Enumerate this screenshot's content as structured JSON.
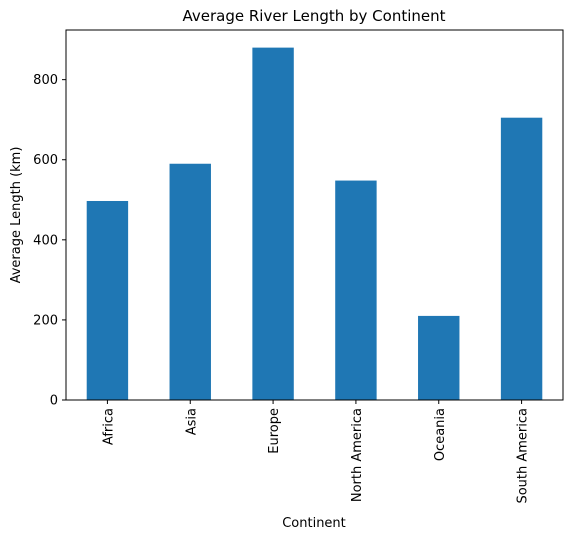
{
  "chart_data": {
    "type": "bar",
    "title": "Average River Length by Continent",
    "xlabel": "Continent",
    "ylabel": "Average Length (km)",
    "categories": [
      "Africa",
      "Asia",
      "Europe",
      "North America",
      "Oceania",
      "South America"
    ],
    "values": [
      497,
      590,
      880,
      548,
      210,
      705
    ],
    "ylim": [
      0,
      924
    ],
    "yticks": [
      0,
      200,
      400,
      600,
      800
    ],
    "grid": false,
    "bar_color": "#1f77b4"
  }
}
